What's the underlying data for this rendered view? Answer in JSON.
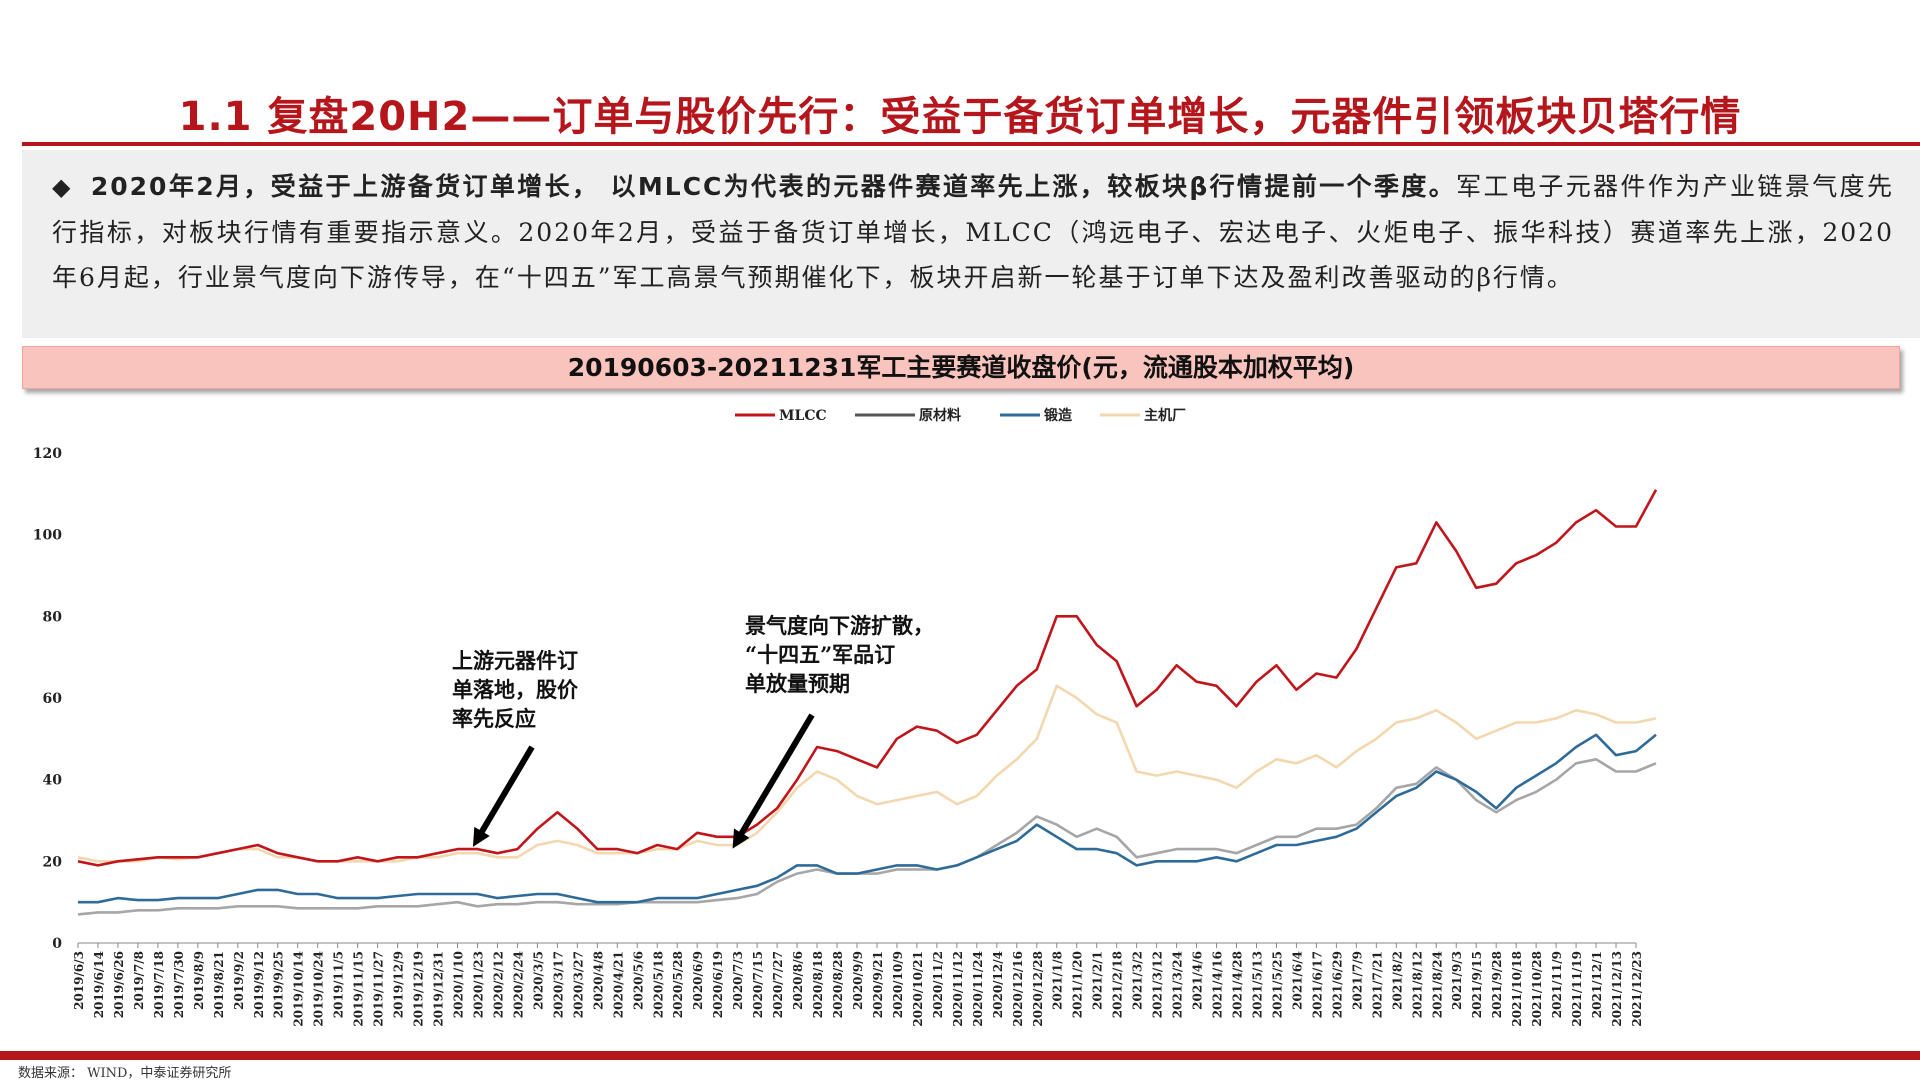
{
  "slide": {
    "title": "1.1 复盘20H2——订单与股价先行：受益于备货订单增长，元器件引领板块贝塔行情",
    "bullet": "◆",
    "lead": "2020年2月，受益于上游备货订单增长， 以MLCC为代表的元器件赛道率先上涨，较板块β行情提前一个季度。",
    "body": "军工电子元器件作为产业链景气度先行指标，对板块行情有重要指示意义。2020年2月，受益于备货订单增长，MLCC（鸿远电子、宏达电子、火炬电子、振华科技）赛道率先上涨，2020年6月起，行业景气度向下游传导，在“十四五”军工高景气预期催化下，板块开启新一轮基于订单下达及盈利改善驱动的β行情。",
    "chart_header": "20190603-20211231军工主要赛道收盘价(元，流通股本加权平均)",
    "source": "数据来源： WIND，中泰证券研究所"
  },
  "colors": {
    "accent": "#b5161c",
    "header_bg": "#f8c4bd",
    "summary_bg": "#efefef"
  },
  "chart_data": {
    "type": "line",
    "title": "20190603-20211231军工主要赛道收盘价(元，流通股本加权平均)",
    "xlabel": "",
    "ylabel": "",
    "ylim": [
      0,
      120
    ],
    "yticks": [
      0,
      20,
      40,
      60,
      80,
      100,
      120
    ],
    "legend_position": "top-center",
    "grid": false,
    "x_tick_labels": [
      "2019/6/3",
      "2019/6/14",
      "2019/6/26",
      "2019/7/8",
      "2019/7/18",
      "2019/7/30",
      "2019/8/9",
      "2019/8/21",
      "2019/9/2",
      "2019/9/12",
      "2019/9/25",
      "2019/10/14",
      "2019/10/24",
      "2019/11/5",
      "2019/11/15",
      "2019/11/27",
      "2019/12/9",
      "2019/12/19",
      "2019/12/31",
      "2020/1/10",
      "2020/1/23",
      "2020/2/12",
      "2020/2/24",
      "2020/3/5",
      "2020/3/17",
      "2020/3/27",
      "2020/4/8",
      "2020/4/21",
      "2020/5/6",
      "2020/5/18",
      "2020/5/28",
      "2020/6/9",
      "2020/6/19",
      "2020/7/3",
      "2020/7/15",
      "2020/7/27",
      "2020/8/6",
      "2020/8/18",
      "2020/8/28",
      "2020/9/9",
      "2020/9/21",
      "2020/10/9",
      "2020/10/21",
      "2020/11/2",
      "2020/11/12",
      "2020/11/24",
      "2020/12/4",
      "2020/12/16",
      "2020/12/28",
      "2021/1/8",
      "2021/1/20",
      "2021/2/1",
      "2021/2/18",
      "2021/3/2",
      "2021/3/12",
      "2021/3/24",
      "2021/4/6",
      "2021/4/16",
      "2021/4/28",
      "2021/5/13",
      "2021/5/25",
      "2021/6/4",
      "2021/6/17",
      "2021/6/29",
      "2021/7/9",
      "2021/7/21",
      "2021/8/2",
      "2021/8/12",
      "2021/8/24",
      "2021/9/3",
      "2021/9/15",
      "2021/9/28",
      "2021/10/18",
      "2021/10/28",
      "2021/11/9",
      "2021/11/19",
      "2021/12/1",
      "2021/12/13",
      "2021/12/23"
    ],
    "series": [
      {
        "name": "MLCC",
        "color": "#c0161b",
        "values": [
          20,
          19,
          20,
          20.5,
          21,
          21,
          21,
          22,
          23,
          24,
          22,
          21,
          20,
          20,
          21,
          20,
          21,
          21,
          22,
          23,
          23,
          22,
          23,
          28,
          32,
          28,
          23,
          23,
          22,
          24,
          23,
          27,
          26,
          26,
          29,
          33,
          40,
          48,
          47,
          45,
          43,
          50,
          53,
          52,
          49,
          51,
          57,
          63,
          67,
          80,
          80,
          73,
          69,
          58,
          62,
          68,
          64,
          63,
          58,
          64,
          68,
          62,
          66,
          65,
          72,
          82,
          92,
          93,
          103,
          96,
          87,
          88,
          93,
          95,
          98,
          103,
          106,
          102,
          102,
          111
        ]
      },
      {
        "name": "原材料",
        "color": "#a6a6a6",
        "values": [
          7,
          7.5,
          7.5,
          8,
          8,
          8.5,
          8.5,
          8.5,
          9,
          9,
          9,
          8.5,
          8.5,
          8.5,
          8.5,
          9,
          9,
          9,
          9.5,
          10,
          9,
          9.5,
          9.5,
          10,
          10,
          9.5,
          9.5,
          9.5,
          10,
          10,
          10,
          10,
          10.5,
          11,
          12,
          15,
          17,
          18,
          17,
          17,
          17,
          18,
          18,
          18,
          19,
          21,
          24,
          27,
          31,
          29,
          26,
          28,
          26,
          21,
          22,
          23,
          23,
          23,
          22,
          24,
          26,
          26,
          28,
          28,
          29,
          33,
          38,
          39,
          43,
          40,
          35,
          32,
          35,
          37,
          40,
          44,
          45,
          42,
          42,
          44
        ]
      },
      {
        "name": "锻造",
        "color": "#2e6b99",
        "values": [
          10,
          10,
          11,
          10.5,
          10.5,
          11,
          11,
          11,
          12,
          13,
          13,
          12,
          12,
          11,
          11,
          11,
          11.5,
          12,
          12,
          12,
          12,
          11,
          11.5,
          12,
          12,
          11,
          10,
          10,
          10,
          11,
          11,
          11,
          12,
          13,
          14,
          16,
          19,
          19,
          17,
          17,
          18,
          19,
          19,
          18,
          19,
          21,
          23,
          25,
          29,
          26,
          23,
          23,
          22,
          19,
          20,
          20,
          20,
          21,
          20,
          22,
          24,
          24,
          25,
          26,
          28,
          32,
          36,
          38,
          42,
          40,
          37,
          33,
          38,
          41,
          44,
          48,
          51,
          46,
          47,
          51
        ]
      },
      {
        "name": "主机厂",
        "color": "#f3d7ae",
        "values": [
          21,
          20,
          20,
          20,
          21,
          20.5,
          21,
          22,
          23,
          23,
          21,
          21,
          20,
          20,
          20,
          20,
          20,
          21,
          21,
          22,
          22,
          21,
          21,
          24,
          25,
          24,
          22,
          22,
          22,
          23,
          23,
          25,
          24,
          24,
          27,
          32,
          38,
          42,
          40,
          36,
          34,
          35,
          36,
          37,
          34,
          36,
          41,
          45,
          50,
          63,
          60,
          56,
          54,
          42,
          41,
          42,
          41,
          40,
          38,
          42,
          45,
          44,
          46,
          43,
          47,
          50,
          54,
          55,
          57,
          54,
          50,
          52,
          54,
          54,
          55,
          57,
          56,
          54,
          54,
          55
        ]
      }
    ],
    "annotations": [
      {
        "text": [
          "上游元器件订",
          "单落地，股价",
          "率先反应"
        ],
        "at_index": 20
      },
      {
        "text": [
          "景气度向下游扩散，",
          "“十四五”军品订",
          "单放量预期"
        ],
        "at_index": 33
      }
    ]
  }
}
